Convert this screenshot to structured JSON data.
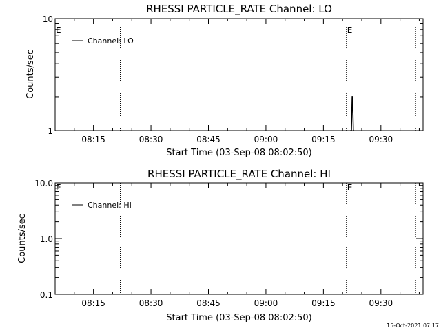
{
  "chart_data": [
    {
      "type": "line",
      "title": "RHESSI PARTICLE_RATE Channel: LO",
      "xlabel": "Start Time (03-Sep-08 08:02:50)",
      "ylabel": "Counts/sec",
      "yscale": "log",
      "ylim": [
        1,
        10
      ],
      "ytick_labels": [
        "1",
        "10"
      ],
      "xlim": [
        "08:05",
        "09:41"
      ],
      "xtick_labels": [
        "08:15",
        "08:30",
        "08:45",
        "09:00",
        "09:15",
        "09:30"
      ],
      "markers": [
        {
          "time": "08:22",
          "label": ""
        },
        {
          "time": "09:21",
          "label": "E"
        },
        {
          "time": "09:39",
          "label": ""
        }
      ],
      "left_marker_label": "E",
      "legend": "Channel: LO",
      "legend_position": "top-left",
      "series": [
        {
          "name": "Channel: LO",
          "x": [
            "09:22.0",
            "09:22.3",
            "09:22.5",
            "09:22.6",
            "09:22.8",
            "09:23.0"
          ],
          "y": [
            1,
            1,
            2,
            2,
            1,
            1
          ]
        }
      ]
    },
    {
      "type": "line",
      "title": "RHESSI PARTICLE_RATE Channel: HI",
      "xlabel": "Start Time (03-Sep-08 08:02:50)",
      "ylabel": "Counts/sec",
      "yscale": "log",
      "ylim": [
        0.1,
        10
      ],
      "ytick_labels": [
        "0.1",
        "1.0",
        "10.0"
      ],
      "xlim": [
        "08:05",
        "09:41"
      ],
      "xtick_labels": [
        "08:15",
        "08:30",
        "08:45",
        "09:00",
        "09:15",
        "09:30"
      ],
      "markers": [
        {
          "time": "08:22",
          "label": ""
        },
        {
          "time": "09:21",
          "label": "E"
        },
        {
          "time": "09:39",
          "label": ""
        }
      ],
      "left_marker_label": "E",
      "legend": "Channel: HI",
      "legend_position": "top-left",
      "series": [
        {
          "name": "Channel: HI",
          "x": [],
          "y": []
        }
      ]
    }
  ],
  "footer": {
    "timestamp": "15-Oct-2021 07:17"
  }
}
